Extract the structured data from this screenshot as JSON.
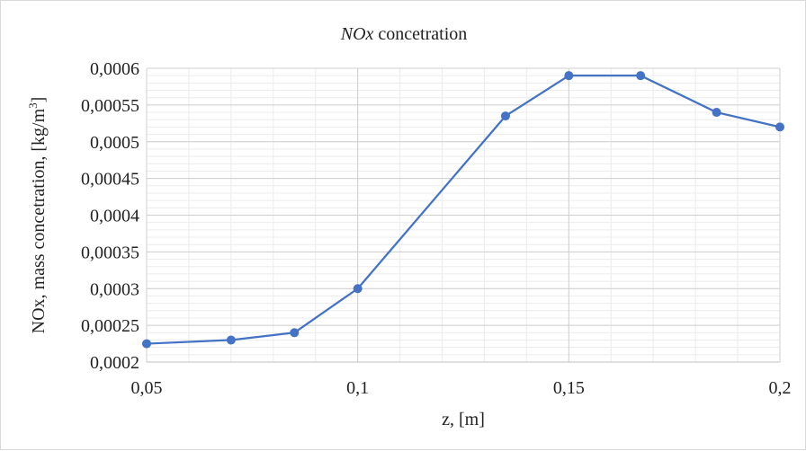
{
  "chart_data": {
    "type": "line",
    "title_italic": "NOx",
    "title_rest": " concetration",
    "xlabel": "z, [m]",
    "ylabel_main": "NOx, mass concetration, [kg/m",
    "ylabel_sup": "3",
    "ylabel_end": "]",
    "xlim": [
      0.05,
      0.2
    ],
    "ylim": [
      0.0002,
      0.0006
    ],
    "x_ticks": [
      0.05,
      0.1,
      0.15,
      0.2
    ],
    "x_tick_labels": [
      "0,05",
      "0,1",
      "0,15",
      "0,2"
    ],
    "y_ticks": [
      0.0002,
      0.00025,
      0.0003,
      0.00035,
      0.0004,
      0.00045,
      0.0005,
      0.00055,
      0.0006
    ],
    "y_tick_labels": [
      "0,0002",
      "0,00025",
      "0,0003",
      "0,00035",
      "0,0004",
      "0,00045",
      "0,0005",
      "0,00055",
      "0,0006"
    ],
    "x_minor_step": 0.01,
    "y_minor_step": 1e-05,
    "grid": true,
    "series": [
      {
        "color": "#4472C4",
        "x": [
          0.05,
          0.07,
          0.085,
          0.1,
          0.135,
          0.15,
          0.167,
          0.185,
          0.2
        ],
        "y": [
          0.000225,
          0.00023,
          0.00024,
          0.0003,
          0.000535,
          0.00059,
          0.00059,
          0.00054,
          0.00052
        ]
      }
    ]
  }
}
